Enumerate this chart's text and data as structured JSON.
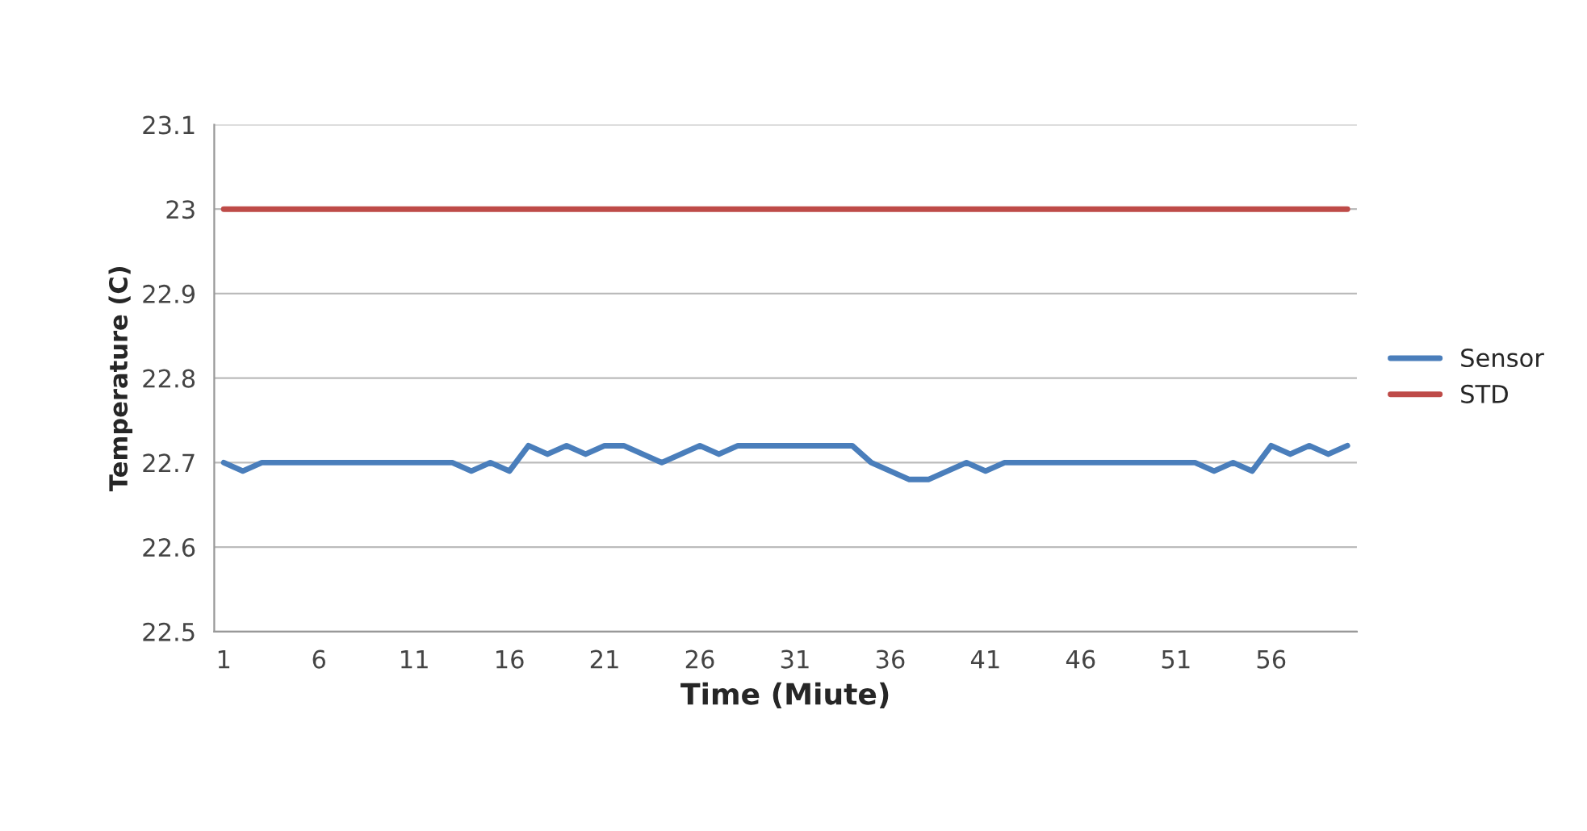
{
  "chart_data": {
    "type": "line",
    "xlabel": "Time (Miute)",
    "ylabel": "Temperature (C)",
    "categories": [
      "1",
      null,
      null,
      null,
      null,
      "6",
      null,
      null,
      null,
      null,
      "11",
      null,
      null,
      null,
      null,
      "16",
      null,
      null,
      null,
      null,
      "21",
      null,
      null,
      null,
      null,
      "26",
      null,
      null,
      null,
      null,
      "31",
      null,
      null,
      null,
      null,
      "36",
      null,
      null,
      null,
      null,
      "41",
      null,
      null,
      null,
      null,
      "46",
      null,
      null,
      null,
      null,
      "51",
      null,
      null,
      null,
      null,
      "56",
      null,
      null,
      null,
      null
    ],
    "series": [
      {
        "name": "Sensor",
        "color": "#4a7ebb",
        "values": [
          22.7,
          22.69,
          22.7,
          22.7,
          22.7,
          22.7,
          22.7,
          22.7,
          22.7,
          22.7,
          22.7,
          22.7,
          22.7,
          22.69,
          22.7,
          22.69,
          22.72,
          22.71,
          22.72,
          22.71,
          22.72,
          22.72,
          22.71,
          22.7,
          22.71,
          22.72,
          22.71,
          22.72,
          22.72,
          22.72,
          22.72,
          22.72,
          22.72,
          22.72,
          22.7,
          22.69,
          22.68,
          22.68,
          22.69,
          22.7,
          22.69,
          22.7,
          22.7,
          22.7,
          22.7,
          22.7,
          22.7,
          22.7,
          22.7,
          22.7,
          22.7,
          22.7,
          22.69,
          22.7,
          22.69,
          22.72,
          22.71,
          22.72,
          22.71,
          22.72
        ]
      },
      {
        "name": "STD",
        "color": "#be4b48",
        "values": [
          23,
          23,
          23,
          23,
          23,
          23,
          23,
          23,
          23,
          23,
          23,
          23,
          23,
          23,
          23,
          23,
          23,
          23,
          23,
          23,
          23,
          23,
          23,
          23,
          23,
          23,
          23,
          23,
          23,
          23,
          23,
          23,
          23,
          23,
          23,
          23,
          23,
          23,
          23,
          23,
          23,
          23,
          23,
          23,
          23,
          23,
          23,
          23,
          23,
          23,
          23,
          23,
          23,
          23,
          23,
          23,
          23,
          23,
          23,
          23
        ]
      }
    ],
    "ylim": [
      22.5,
      23.1
    ],
    "yticks": [
      22.5,
      22.6,
      22.7,
      22.8,
      22.9,
      23,
      23.1
    ],
    "grid": "y",
    "legend": "right",
    "marker": "none",
    "line_style": "solid"
  }
}
